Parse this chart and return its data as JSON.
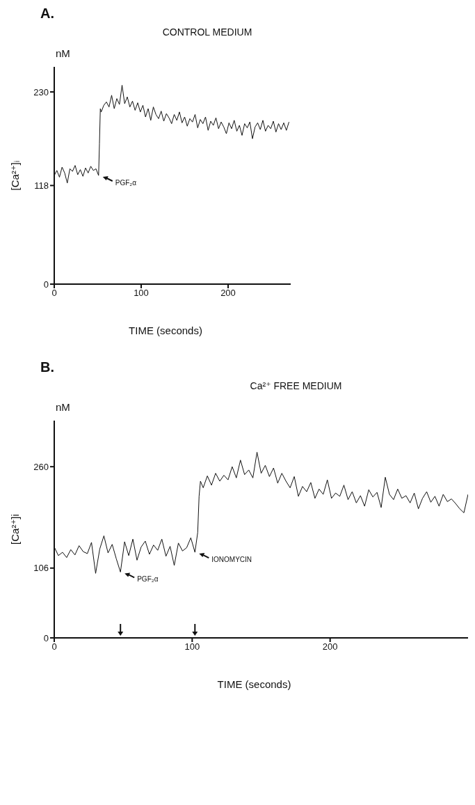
{
  "chart_data": [
    {
      "type": "line",
      "title": "A.",
      "subtitle": "CONTROL MEDIUM",
      "xlabel": "TIME (seconds)",
      "ylabel": "[Ca²⁺]ᵢ",
      "annotations": [
        "nM",
        {
          "text": "PGF₂α",
          "x": 51,
          "y": 130
        }
      ],
      "xlim": [
        0,
        272
      ],
      "xticks": [
        0,
        100,
        200
      ],
      "ylim": [
        0,
        260
      ],
      "yticks": [
        0,
        118,
        230
      ],
      "marker": "none",
      "line_style": "solid",
      "series": [
        {
          "color": "#111111",
          "x": [
            0,
            3,
            6,
            9,
            12,
            15,
            18,
            21,
            24,
            27,
            30,
            33,
            36,
            39,
            42,
            45,
            48,
            51,
            52,
            53,
            54,
            57,
            60,
            63,
            66,
            69,
            72,
            75,
            78,
            81,
            84,
            87,
            90,
            93,
            96,
            99,
            102,
            105,
            108,
            111,
            114,
            117,
            120,
            123,
            126,
            129,
            132,
            135,
            138,
            141,
            144,
            147,
            150,
            153,
            156,
            159,
            162,
            165,
            168,
            171,
            174,
            177,
            180,
            183,
            186,
            189,
            192,
            195,
            198,
            201,
            204,
            207,
            210,
            213,
            216,
            219,
            222,
            225,
            228,
            231,
            234,
            237,
            240,
            243,
            246,
            249,
            252,
            255,
            258,
            261,
            264,
            267,
            270
          ],
          "values": [
            130,
            136,
            128,
            140,
            133,
            121,
            138,
            135,
            142,
            131,
            137,
            129,
            139,
            133,
            141,
            136,
            138,
            130,
            168,
            210,
            206,
            214,
            218,
            212,
            226,
            210,
            222,
            215,
            238,
            216,
            224,
            212,
            219,
            208,
            217,
            206,
            214,
            200,
            210,
            196,
            212,
            203,
            198,
            207,
            195,
            204,
            199,
            192,
            203,
            196,
            206,
            193,
            200,
            189,
            198,
            194,
            203,
            187,
            197,
            192,
            200,
            184,
            195,
            190,
            199,
            186,
            194,
            188,
            180,
            193,
            186,
            196,
            183,
            190,
            178,
            192,
            187,
            194,
            174,
            188,
            193,
            185,
            196,
            183,
            190,
            186,
            195,
            182,
            192,
            185,
            193,
            184,
            194
          ]
        }
      ]
    },
    {
      "type": "line",
      "title": "B.",
      "subtitle": "Ca²⁺ FREE MEDIUM",
      "xlabel": "TIME (seconds)",
      "ylabel": "[Ca²⁺]i",
      "annotations": [
        "nM",
        {
          "text": "PGF₂α",
          "x": 48,
          "y": 100
        },
        {
          "text": "IONOMYCIN",
          "x": 102,
          "y": 130
        }
      ],
      "xlim": [
        0,
        300
      ],
      "xticks": [
        0,
        100,
        200
      ],
      "ylim": [
        0,
        330
      ],
      "yticks": [
        0,
        106,
        260
      ],
      "marker": "none",
      "line_style": "solid",
      "series": [
        {
          "color": "#111111",
          "x": [
            0,
            3,
            6,
            9,
            12,
            15,
            18,
            21,
            24,
            27,
            30,
            33,
            36,
            39,
            42,
            45,
            48,
            51,
            54,
            57,
            60,
            63,
            66,
            69,
            72,
            75,
            78,
            81,
            84,
            87,
            90,
            93,
            96,
            99,
            102,
            104,
            105,
            106,
            108,
            111,
            114,
            117,
            120,
            123,
            126,
            129,
            132,
            135,
            138,
            141,
            144,
            147,
            150,
            153,
            156,
            159,
            162,
            165,
            168,
            171,
            174,
            177,
            180,
            183,
            186,
            189,
            192,
            195,
            198,
            201,
            204,
            207,
            210,
            213,
            216,
            219,
            222,
            225,
            228,
            231,
            234,
            237,
            240,
            243,
            246,
            249,
            252,
            255,
            258,
            261,
            264,
            267,
            270,
            273,
            276,
            279,
            282,
            285,
            288,
            291,
            294,
            297,
            300
          ],
          "values": [
            138,
            125,
            130,
            122,
            134,
            126,
            140,
            131,
            128,
            145,
            98,
            135,
            155,
            129,
            142,
            120,
            100,
            146,
            125,
            150,
            118,
            138,
            147,
            127,
            141,
            133,
            150,
            124,
            139,
            110,
            144,
            132,
            137,
            152,
            130,
            160,
            215,
            238,
            228,
            246,
            232,
            250,
            238,
            247,
            240,
            260,
            243,
            270,
            248,
            255,
            243,
            282,
            250,
            262,
            245,
            258,
            235,
            250,
            238,
            228,
            245,
            215,
            230,
            222,
            236,
            212,
            226,
            218,
            240,
            212,
            220,
            215,
            232,
            210,
            222,
            205,
            216,
            200,
            225,
            214,
            221,
            198,
            244,
            218,
            210,
            226,
            212,
            216,
            205,
            220,
            196,
            212,
            222,
            206,
            215,
            200,
            218,
            207,
            211,
            204,
            196,
            190,
            218
          ]
        }
      ]
    }
  ]
}
